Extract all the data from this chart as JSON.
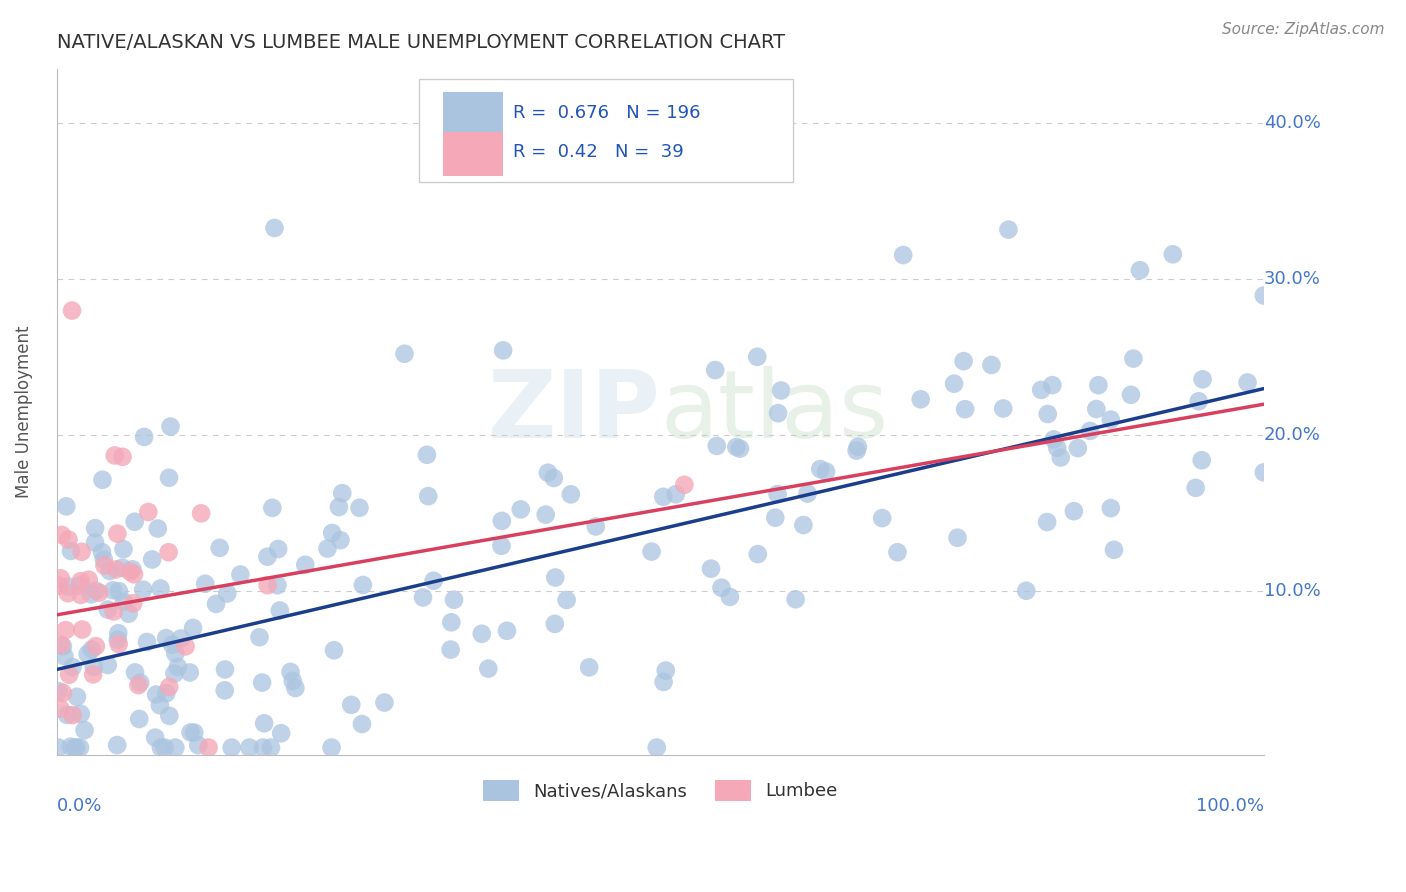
{
  "title": "NATIVE/ALASKAN VS LUMBEE MALE UNEMPLOYMENT CORRELATION CHART",
  "source": "Source: ZipAtlas.com",
  "ylabel": "Male Unemployment",
  "ytick_labels": [
    "10.0%",
    "20.0%",
    "30.0%",
    "40.0%"
  ],
  "ytick_values": [
    0.1,
    0.2,
    0.3,
    0.4
  ],
  "xlim": [
    0.0,
    1.0
  ],
  "ylim": [
    -0.005,
    0.435
  ],
  "blue_R": 0.676,
  "blue_N": 196,
  "pink_R": 0.42,
  "pink_N": 39,
  "blue_color": "#aac4e0",
  "pink_color": "#f4a8b8",
  "blue_line_color": "#1a3e8c",
  "pink_line_color": "#d94060",
  "title_color": "#333333",
  "axis_label_color": "#4477cc",
  "legend_R_color": "#2255bb",
  "grid_color": "#cccccc",
  "watermark": "ZIPatlas",
  "blue_intercept": 0.05,
  "blue_slope": 0.18,
  "pink_intercept": 0.085,
  "pink_slope": 0.135
}
